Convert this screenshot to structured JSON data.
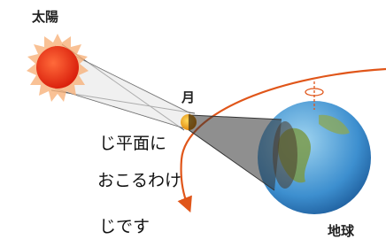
{
  "labels": {
    "sun": "太陽",
    "moon": "月",
    "earth": "地球"
  },
  "text": {
    "lines": [
      "じ平面に",
      "おこるわけ",
      "じです"
    ]
  }
}
